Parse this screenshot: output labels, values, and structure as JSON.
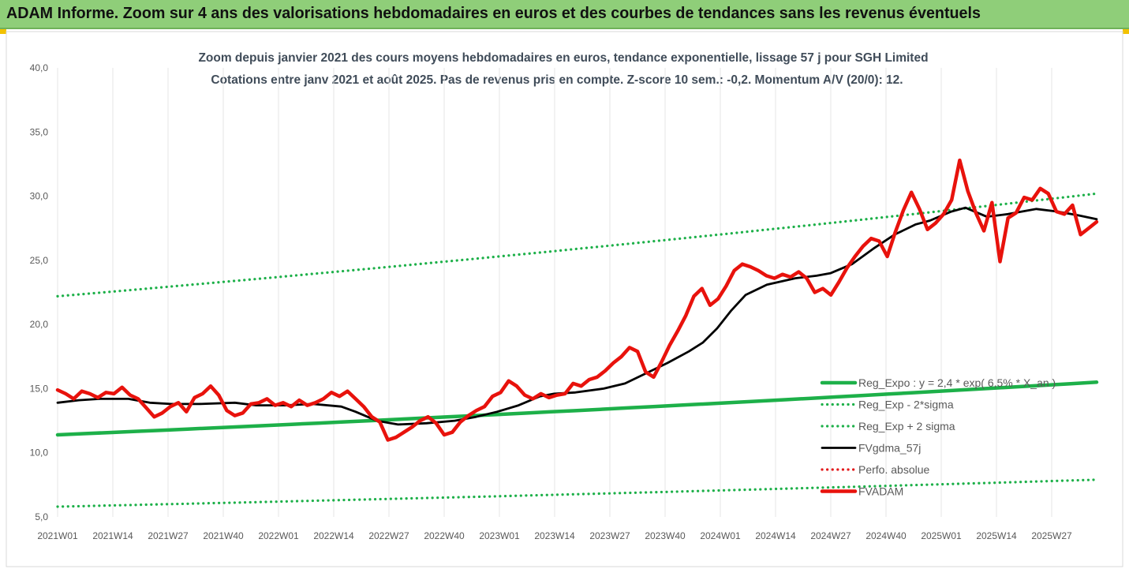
{
  "header": {
    "title": "ADAM Informe. Zoom sur 4 ans des valorisations hebdomadaires en euros et des courbes de tendances sans les revenus éventuels"
  },
  "chart_data": {
    "type": "line",
    "title_line1": "Zoom depuis janvier 2021 des cours moyens hebdomadaires en euros, tendance exponentielle, lissage 57 j pour SGH Limited",
    "title_line2": "Cotations entre janv 2021 et août 2025.  Pas de revenus pris en compte. Z-score 10 sem.: -0,2. Momentum A/V (20/0): 12.",
    "xlabel": "",
    "ylabel": "",
    "ylim": [
      5,
      40
    ],
    "ytick_labels": [
      "40,0",
      "35,0",
      "30,0",
      "25,0",
      "20,0",
      "15,0",
      "10,0",
      "5,0"
    ],
    "yticks": [
      40,
      35,
      30,
      25,
      20,
      15,
      10,
      5
    ],
    "xtick_labels": [
      "2021W01",
      "2021W14",
      "2021W27",
      "2021W40",
      "2022W01",
      "2022W14",
      "2022W27",
      "2022W40",
      "2023W01",
      "2023W14",
      "2023W27",
      "2023W40",
      "2024W01",
      "2024W14",
      "2024W27",
      "2024W40",
      "2025W01",
      "2025W14",
      "2025W27"
    ],
    "grid": "vertical",
    "legend_position": "bottom-right",
    "x_weeks": [
      0,
      243
    ],
    "series": [
      {
        "name": "Reg_Expo : y = 2,4 * exp( 6,5% *  X_an )",
        "color": "#1db049",
        "style": "solid-thick",
        "values": [
          [
            0,
            11.4
          ],
          [
            243,
            15.5
          ]
        ]
      },
      {
        "name": "Reg_Exp - 2*sigma",
        "color": "#1db049",
        "style": "dotted",
        "values": [
          [
            0,
            5.8
          ],
          [
            243,
            7.9
          ]
        ]
      },
      {
        "name": "Reg_Exp + 2 sigma",
        "color": "#1db049",
        "style": "dotted",
        "values": [
          [
            0,
            22.2
          ],
          [
            243,
            30.2
          ]
        ]
      },
      {
        "name": "FVgdma_57j",
        "color": "#000000",
        "style": "solid",
        "values": [
          [
            0,
            13.9
          ],
          [
            6,
            14.1
          ],
          [
            12,
            14.2
          ],
          [
            20,
            14.2
          ],
          [
            26,
            13.9
          ],
          [
            32,
            13.8
          ],
          [
            40,
            13.8
          ],
          [
            50,
            13.9
          ],
          [
            56,
            13.7
          ],
          [
            64,
            13.7
          ],
          [
            72,
            13.8
          ],
          [
            80,
            13.6
          ],
          [
            84,
            13.2
          ],
          [
            90,
            12.5
          ],
          [
            96,
            12.2
          ],
          [
            104,
            12.3
          ],
          [
            112,
            12.5
          ],
          [
            118,
            12.8
          ],
          [
            124,
            13.2
          ],
          [
            130,
            13.7
          ],
          [
            136,
            14.4
          ],
          [
            140,
            14.6
          ],
          [
            146,
            14.7
          ],
          [
            154,
            15.0
          ],
          [
            160,
            15.4
          ],
          [
            166,
            16.2
          ],
          [
            172,
            17.0
          ],
          [
            178,
            17.9
          ],
          [
            182,
            18.6
          ],
          [
            186,
            19.7
          ],
          [
            190,
            21.1
          ],
          [
            194,
            22.3
          ],
          [
            200,
            23.1
          ],
          [
            208,
            23.6
          ],
          [
            214,
            23.8
          ],
          [
            218,
            24.0
          ],
          [
            224,
            24.7
          ],
          [
            230,
            25.9
          ],
          [
            236,
            27.0
          ],
          [
            242,
            27.8
          ],
          [
            246,
            28.1
          ],
          [
            252,
            28.8
          ],
          [
            256,
            29.1
          ],
          [
            262,
            28.4
          ],
          [
            268,
            28.6
          ],
          [
            276,
            29.0
          ],
          [
            282,
            28.8
          ],
          [
            288,
            28.5
          ],
          [
            293,
            28.2
          ]
        ]
      },
      {
        "name": "Perfo. absolue",
        "color": "#e31a1c",
        "style": "dotted",
        "values": []
      },
      {
        "name": "FVADAM",
        "color": "#e8120c",
        "style": "solid-thick",
        "values": [
          [
            0,
            14.9
          ],
          [
            2,
            14.6
          ],
          [
            4,
            14.2
          ],
          [
            6,
            14.8
          ],
          [
            8,
            14.6
          ],
          [
            10,
            14.3
          ],
          [
            12,
            14.7
          ],
          [
            14,
            14.6
          ],
          [
            16,
            15.1
          ],
          [
            18,
            14.5
          ],
          [
            20,
            14.2
          ],
          [
            22,
            13.5
          ],
          [
            24,
            12.8
          ],
          [
            26,
            13.1
          ],
          [
            28,
            13.6
          ],
          [
            30,
            13.9
          ],
          [
            32,
            13.2
          ],
          [
            34,
            14.3
          ],
          [
            36,
            14.6
          ],
          [
            38,
            15.2
          ],
          [
            40,
            14.5
          ],
          [
            42,
            13.3
          ],
          [
            44,
            12.9
          ],
          [
            46,
            13.1
          ],
          [
            48,
            13.8
          ],
          [
            50,
            13.9
          ],
          [
            52,
            14.2
          ],
          [
            54,
            13.7
          ],
          [
            56,
            13.9
          ],
          [
            58,
            13.6
          ],
          [
            60,
            14.1
          ],
          [
            62,
            13.7
          ],
          [
            64,
            13.9
          ],
          [
            66,
            14.2
          ],
          [
            68,
            14.7
          ],
          [
            70,
            14.4
          ],
          [
            72,
            14.8
          ],
          [
            74,
            14.2
          ],
          [
            76,
            13.6
          ],
          [
            78,
            12.8
          ],
          [
            80,
            12.4
          ],
          [
            82,
            11.0
          ],
          [
            84,
            11.2
          ],
          [
            86,
            11.6
          ],
          [
            88,
            12.0
          ],
          [
            90,
            12.5
          ],
          [
            92,
            12.8
          ],
          [
            94,
            12.3
          ],
          [
            96,
            11.4
          ],
          [
            98,
            11.6
          ],
          [
            100,
            12.4
          ],
          [
            102,
            12.9
          ],
          [
            104,
            13.3
          ],
          [
            106,
            13.6
          ],
          [
            108,
            14.4
          ],
          [
            110,
            14.7
          ],
          [
            112,
            15.6
          ],
          [
            114,
            15.2
          ],
          [
            116,
            14.5
          ],
          [
            118,
            14.2
          ],
          [
            120,
            14.6
          ],
          [
            122,
            14.3
          ],
          [
            124,
            14.5
          ],
          [
            126,
            14.6
          ],
          [
            128,
            15.4
          ],
          [
            130,
            15.2
          ],
          [
            132,
            15.7
          ],
          [
            134,
            15.9
          ],
          [
            136,
            16.4
          ],
          [
            138,
            17.0
          ],
          [
            140,
            17.5
          ],
          [
            142,
            18.2
          ],
          [
            144,
            17.9
          ],
          [
            146,
            16.3
          ],
          [
            148,
            15.9
          ],
          [
            150,
            17.1
          ],
          [
            152,
            18.4
          ],
          [
            154,
            19.5
          ],
          [
            156,
            20.7
          ],
          [
            158,
            22.2
          ],
          [
            160,
            22.8
          ],
          [
            162,
            21.5
          ],
          [
            164,
            22.0
          ],
          [
            166,
            23.0
          ],
          [
            168,
            24.2
          ],
          [
            170,
            24.7
          ],
          [
            172,
            24.5
          ],
          [
            174,
            24.2
          ],
          [
            176,
            23.8
          ],
          [
            178,
            23.6
          ],
          [
            180,
            23.9
          ],
          [
            182,
            23.7
          ],
          [
            184,
            24.1
          ],
          [
            186,
            23.6
          ],
          [
            188,
            22.5
          ],
          [
            190,
            22.8
          ],
          [
            192,
            22.3
          ],
          [
            194,
            23.3
          ],
          [
            196,
            24.4
          ],
          [
            198,
            25.3
          ],
          [
            200,
            26.1
          ],
          [
            202,
            26.7
          ],
          [
            204,
            26.5
          ],
          [
            206,
            25.3
          ],
          [
            208,
            27.2
          ],
          [
            210,
            28.9
          ],
          [
            212,
            30.3
          ],
          [
            214,
            29.0
          ],
          [
            216,
            27.4
          ],
          [
            218,
            27.9
          ],
          [
            220,
            28.6
          ],
          [
            222,
            29.7
          ],
          [
            224,
            32.8
          ],
          [
            226,
            30.4
          ],
          [
            228,
            28.7
          ],
          [
            230,
            27.3
          ],
          [
            232,
            29.5
          ],
          [
            234,
            24.9
          ],
          [
            236,
            28.3
          ],
          [
            238,
            28.7
          ],
          [
            240,
            29.9
          ],
          [
            242,
            29.7
          ],
          [
            244,
            30.6
          ],
          [
            246,
            30.2
          ],
          [
            248,
            28.8
          ],
          [
            250,
            28.6
          ],
          [
            252,
            29.3
          ],
          [
            254,
            27.0
          ],
          [
            256,
            27.5
          ],
          [
            258,
            28.0
          ]
        ]
      }
    ]
  }
}
